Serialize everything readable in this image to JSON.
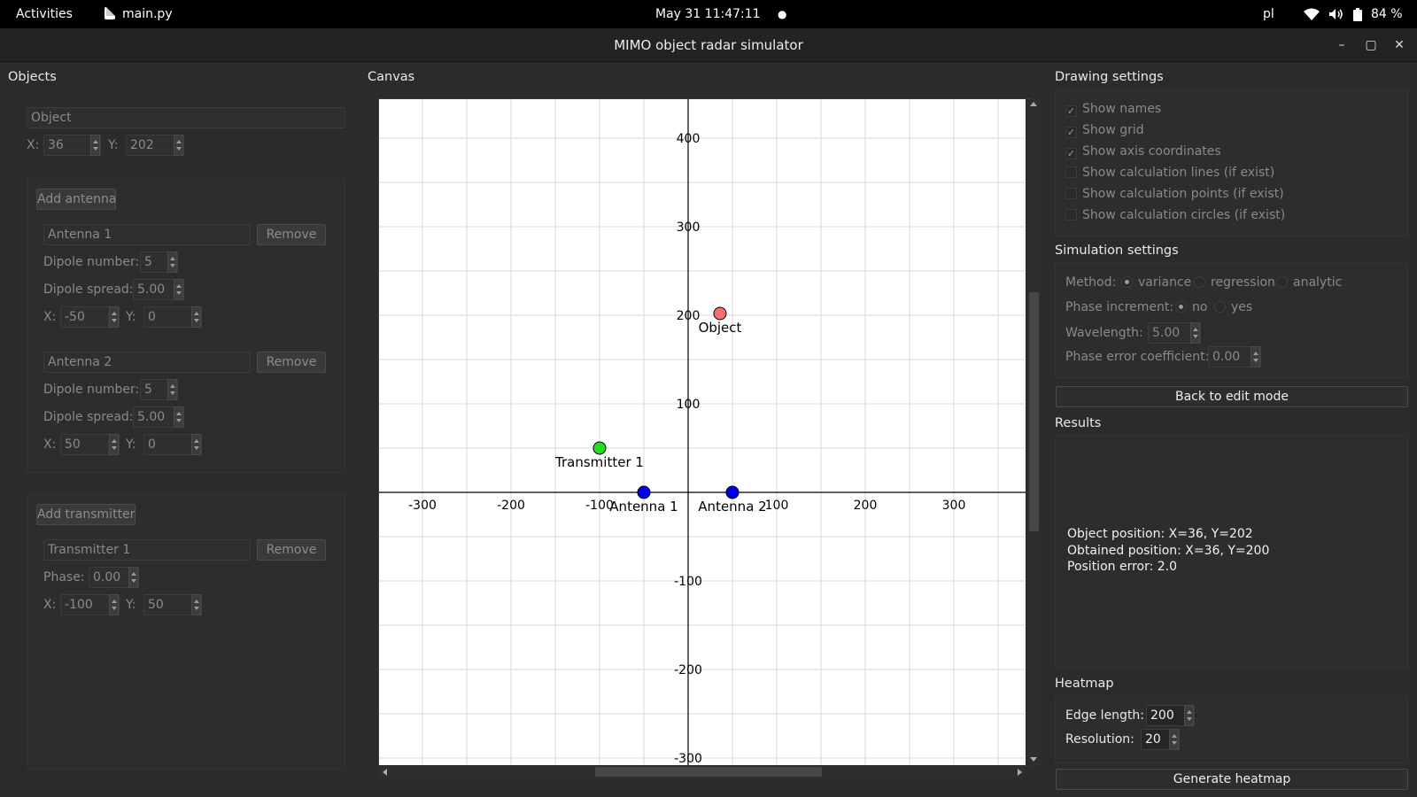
{
  "topbar": {
    "activities": "Activities",
    "app_name": "main.py",
    "clock": "May 31  11:47:11",
    "dot": "●",
    "keyboard": "pl",
    "battery": "84 %"
  },
  "window": {
    "title": "MIMO object radar simulator",
    "minimize": "–",
    "maximize": "▢",
    "close": "✕"
  },
  "objects_panel": {
    "title": "Objects",
    "object": {
      "name": "Object",
      "x_label": "X:",
      "x": "36",
      "y_label": "Y:",
      "y": "202"
    },
    "add_antenna": "Add antenna",
    "antennas": [
      {
        "name": "Antenna 1",
        "remove": "Remove",
        "dipole_number_label": "Dipole number:",
        "dipole_number": "5",
        "dipole_spread_label": "Dipole spread:",
        "dipole_spread": "5.00",
        "x_label": "X:",
        "x": "-50",
        "y_label": "Y:",
        "y": "0"
      },
      {
        "name": "Antenna 2",
        "remove": "Remove",
        "dipole_number_label": "Dipole number:",
        "dipole_number": "5",
        "dipole_spread_label": "Dipole spread:",
        "dipole_spread": "5.00",
        "x_label": "X:",
        "x": "50",
        "y_label": "Y:",
        "y": "0"
      }
    ],
    "add_transmitter": "Add transmitter",
    "transmitters": [
      {
        "name": "Transmitter 1",
        "remove": "Remove",
        "phase_label": "Phase:",
        "phase": "0.00",
        "x_label": "X:",
        "x": "-100",
        "y_label": "Y:",
        "y": "50"
      }
    ]
  },
  "canvas_panel": {
    "title": "Canvas",
    "x_ticks": [
      "-300",
      "-200",
      "-100",
      "100",
      "200",
      "300"
    ],
    "y_ticks": [
      "400",
      "300",
      "200",
      "100",
      "-100",
      "-200",
      "-300"
    ],
    "points": [
      {
        "label": "Object",
        "x": 36,
        "y": 202,
        "color": "#f07070"
      },
      {
        "label": "Transmitter 1",
        "x": -100,
        "y": 50,
        "color": "#22dd22"
      },
      {
        "label": "Antenna 1",
        "x": -50,
        "y": 0,
        "color": "#0000ee"
      },
      {
        "label": "Antenna 2",
        "x": 50,
        "y": 0,
        "color": "#0000ee"
      }
    ]
  },
  "drawing_settings": {
    "title": "Drawing settings",
    "options": [
      {
        "label": "Show names",
        "checked": true
      },
      {
        "label": "Show grid",
        "checked": true
      },
      {
        "label": "Show axis coordinates",
        "checked": true
      },
      {
        "label": "Show calculation lines (if exist)",
        "checked": false
      },
      {
        "label": "Show calculation points (if exist)",
        "checked": false
      },
      {
        "label": "Show calculation circles (if exist)",
        "checked": false
      }
    ]
  },
  "simulation_settings": {
    "title": "Simulation settings",
    "method_label": "Method:",
    "methods": [
      "variance",
      "regression",
      "analytic"
    ],
    "method_selected": "variance",
    "phase_increment_label": "Phase increment:",
    "phase_options": [
      "no",
      "yes"
    ],
    "phase_selected": "no",
    "wavelength_label": "Wavelength:",
    "wavelength": "5.00",
    "phase_error_label": "Phase error coefficient:",
    "phase_error": "0.00",
    "back_button": "Back to edit mode"
  },
  "results": {
    "title": "Results",
    "object_position": "Object position: X=36, Y=202",
    "obtained_position": "Obtained position: X=36, Y=200",
    "position_error": "Position error: 2.0"
  },
  "heatmap": {
    "title": "Heatmap",
    "edge_length_label": "Edge length:",
    "edge_length": "200",
    "resolution_label": "Resolution:",
    "resolution": "20",
    "generate_button": "Generate heatmap"
  }
}
